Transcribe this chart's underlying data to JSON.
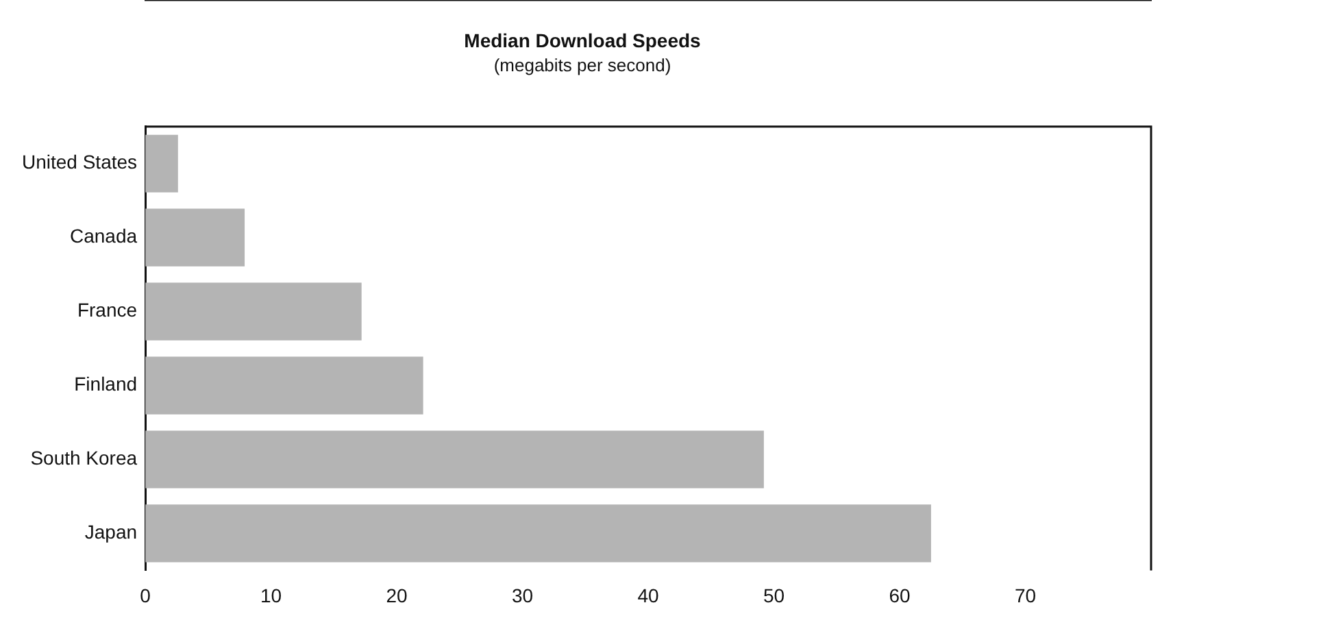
{
  "chart_data": {
    "type": "bar",
    "orientation": "horizontal",
    "title": "Median Download Speeds",
    "subtitle": "(megabits per second)",
    "categories": [
      "United States",
      "Canada",
      "France",
      "Finland",
      "South Korea",
      "Japan"
    ],
    "values": [
      2.6,
      7.9,
      17.2,
      22.1,
      49.2,
      62.5
    ],
    "color": "#b4b4b4",
    "xlim": [
      0,
      80
    ],
    "xticks": [
      0,
      10,
      20,
      30,
      40,
      50,
      60,
      70
    ],
    "grid": false,
    "legend": false
  }
}
